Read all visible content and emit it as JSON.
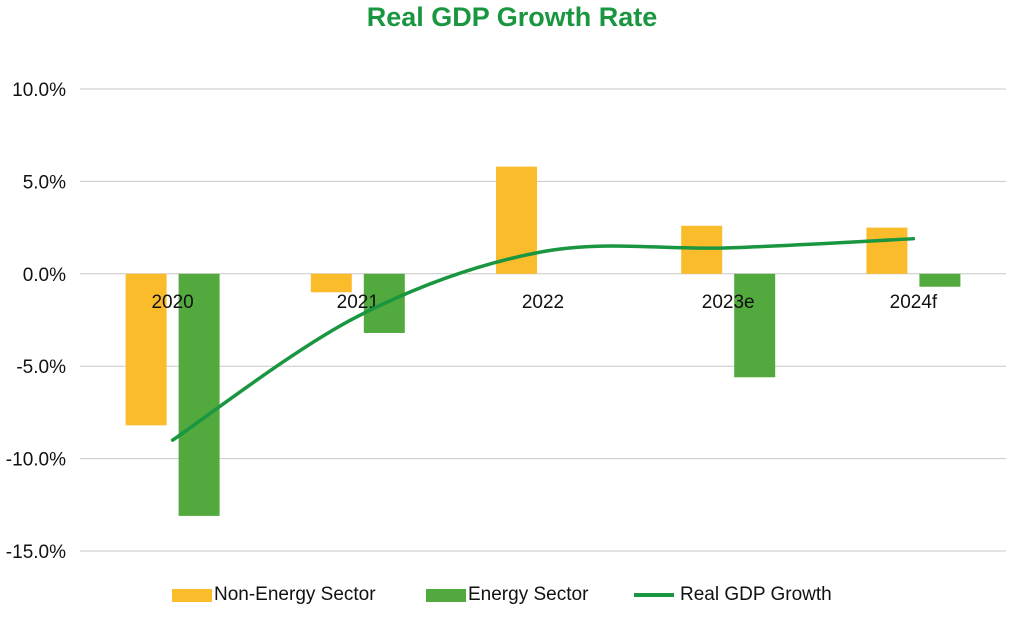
{
  "chart_data": {
    "type": "bar",
    "title": "Real GDP Growth Rate",
    "categories": [
      "2020",
      "2021",
      "2022",
      "2023e",
      "2024f"
    ],
    "series": [
      {
        "name": "Non-Energy Sector",
        "kind": "bar",
        "color": "#fbbc2b",
        "values": [
          -8.2,
          -1.0,
          5.8,
          2.6,
          2.5
        ]
      },
      {
        "name": "Energy Sector",
        "kind": "bar",
        "color": "#52a93e",
        "values": [
          -13.1,
          -3.2,
          0.0,
          -5.6,
          -0.7
        ]
      },
      {
        "name": "Real GDP Growth",
        "kind": "line",
        "color": "#1a9641",
        "values": [
          -9.0,
          -2.3,
          1.2,
          1.4,
          1.9
        ]
      }
    ],
    "yticks": [
      "10.0%",
      "5.0%",
      "0.0%",
      "-5.0%",
      "-10.0%",
      "-15.0%"
    ],
    "ylim": [
      -15,
      10
    ],
    "grid": true,
    "legend": "bottom",
    "title_color": "#1a9641",
    "grid_color": "#c8c8c8"
  }
}
